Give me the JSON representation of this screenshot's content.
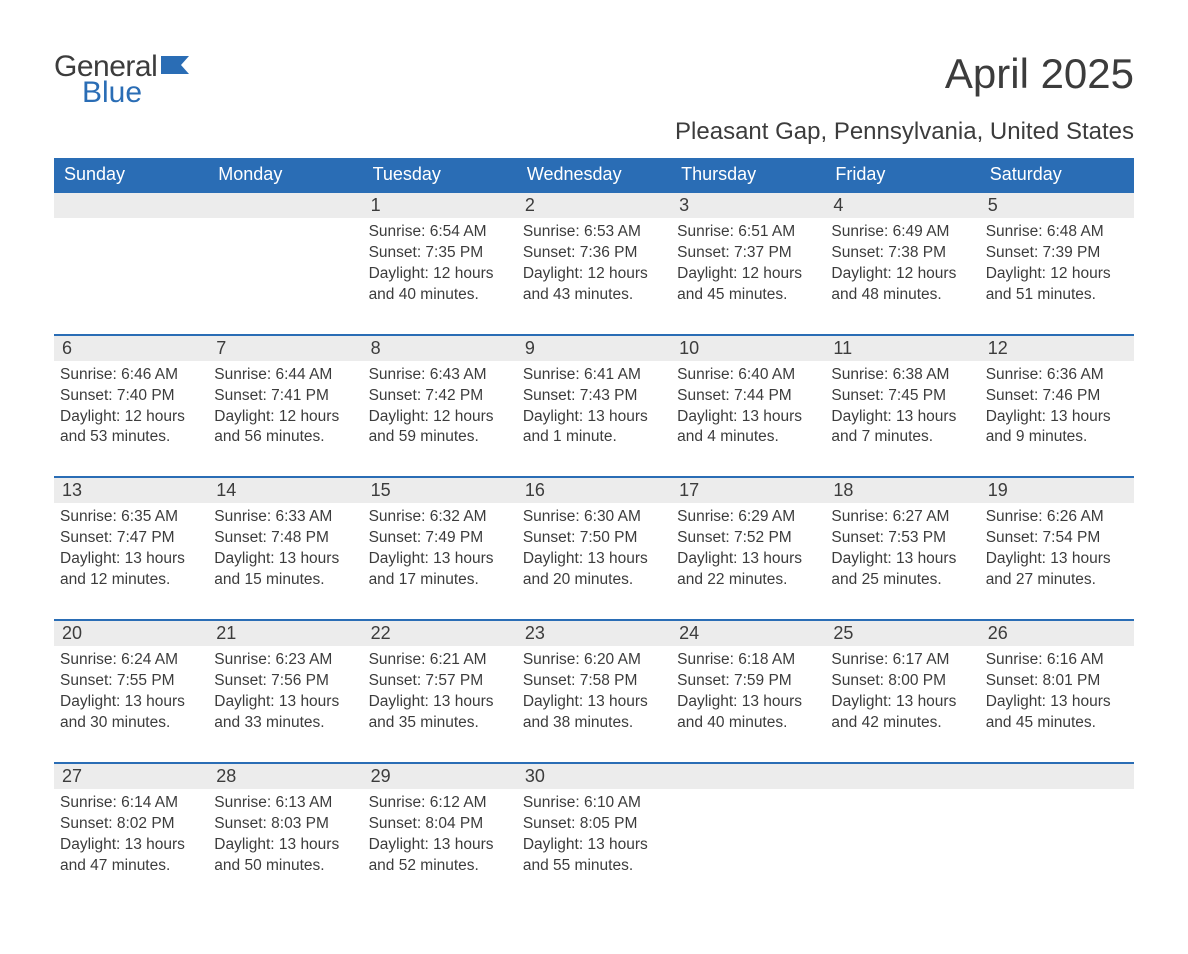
{
  "brand": {
    "word1": "General",
    "word2": "Blue",
    "color1": "#3c3c3c",
    "color2": "#2a6db5"
  },
  "title": "April 2025",
  "location": "Pleasant Gap, Pennsylvania, United States",
  "style": {
    "header_bg": "#2a6db5",
    "header_fg": "#ffffff",
    "daynum_bg": "#ececec",
    "text_color": "#3c3c3c",
    "rule_color": "#2a6db5",
    "page_bg": "#ffffff",
    "title_fontsize": 42,
    "location_fontsize": 24,
    "header_fontsize": 18,
    "daynum_fontsize": 18,
    "body_fontsize": 15.5
  },
  "columns": [
    "Sunday",
    "Monday",
    "Tuesday",
    "Wednesday",
    "Thursday",
    "Friday",
    "Saturday"
  ],
  "weeks": [
    [
      null,
      null,
      {
        "n": "1",
        "sr": "Sunrise: 6:54 AM",
        "ss": "Sunset: 7:35 PM",
        "dl": "Daylight: 12 hours and 40 minutes."
      },
      {
        "n": "2",
        "sr": "Sunrise: 6:53 AM",
        "ss": "Sunset: 7:36 PM",
        "dl": "Daylight: 12 hours and 43 minutes."
      },
      {
        "n": "3",
        "sr": "Sunrise: 6:51 AM",
        "ss": "Sunset: 7:37 PM",
        "dl": "Daylight: 12 hours and 45 minutes."
      },
      {
        "n": "4",
        "sr": "Sunrise: 6:49 AM",
        "ss": "Sunset: 7:38 PM",
        "dl": "Daylight: 12 hours and 48 minutes."
      },
      {
        "n": "5",
        "sr": "Sunrise: 6:48 AM",
        "ss": "Sunset: 7:39 PM",
        "dl": "Daylight: 12 hours and 51 minutes."
      }
    ],
    [
      {
        "n": "6",
        "sr": "Sunrise: 6:46 AM",
        "ss": "Sunset: 7:40 PM",
        "dl": "Daylight: 12 hours and 53 minutes."
      },
      {
        "n": "7",
        "sr": "Sunrise: 6:44 AM",
        "ss": "Sunset: 7:41 PM",
        "dl": "Daylight: 12 hours and 56 minutes."
      },
      {
        "n": "8",
        "sr": "Sunrise: 6:43 AM",
        "ss": "Sunset: 7:42 PM",
        "dl": "Daylight: 12 hours and 59 minutes."
      },
      {
        "n": "9",
        "sr": "Sunrise: 6:41 AM",
        "ss": "Sunset: 7:43 PM",
        "dl": "Daylight: 13 hours and 1 minute."
      },
      {
        "n": "10",
        "sr": "Sunrise: 6:40 AM",
        "ss": "Sunset: 7:44 PM",
        "dl": "Daylight: 13 hours and 4 minutes."
      },
      {
        "n": "11",
        "sr": "Sunrise: 6:38 AM",
        "ss": "Sunset: 7:45 PM",
        "dl": "Daylight: 13 hours and 7 minutes."
      },
      {
        "n": "12",
        "sr": "Sunrise: 6:36 AM",
        "ss": "Sunset: 7:46 PM",
        "dl": "Daylight: 13 hours and 9 minutes."
      }
    ],
    [
      {
        "n": "13",
        "sr": "Sunrise: 6:35 AM",
        "ss": "Sunset: 7:47 PM",
        "dl": "Daylight: 13 hours and 12 minutes."
      },
      {
        "n": "14",
        "sr": "Sunrise: 6:33 AM",
        "ss": "Sunset: 7:48 PM",
        "dl": "Daylight: 13 hours and 15 minutes."
      },
      {
        "n": "15",
        "sr": "Sunrise: 6:32 AM",
        "ss": "Sunset: 7:49 PM",
        "dl": "Daylight: 13 hours and 17 minutes."
      },
      {
        "n": "16",
        "sr": "Sunrise: 6:30 AM",
        "ss": "Sunset: 7:50 PM",
        "dl": "Daylight: 13 hours and 20 minutes."
      },
      {
        "n": "17",
        "sr": "Sunrise: 6:29 AM",
        "ss": "Sunset: 7:52 PM",
        "dl": "Daylight: 13 hours and 22 minutes."
      },
      {
        "n": "18",
        "sr": "Sunrise: 6:27 AM",
        "ss": "Sunset: 7:53 PM",
        "dl": "Daylight: 13 hours and 25 minutes."
      },
      {
        "n": "19",
        "sr": "Sunrise: 6:26 AM",
        "ss": "Sunset: 7:54 PM",
        "dl": "Daylight: 13 hours and 27 minutes."
      }
    ],
    [
      {
        "n": "20",
        "sr": "Sunrise: 6:24 AM",
        "ss": "Sunset: 7:55 PM",
        "dl": "Daylight: 13 hours and 30 minutes."
      },
      {
        "n": "21",
        "sr": "Sunrise: 6:23 AM",
        "ss": "Sunset: 7:56 PM",
        "dl": "Daylight: 13 hours and 33 minutes."
      },
      {
        "n": "22",
        "sr": "Sunrise: 6:21 AM",
        "ss": "Sunset: 7:57 PM",
        "dl": "Daylight: 13 hours and 35 minutes."
      },
      {
        "n": "23",
        "sr": "Sunrise: 6:20 AM",
        "ss": "Sunset: 7:58 PM",
        "dl": "Daylight: 13 hours and 38 minutes."
      },
      {
        "n": "24",
        "sr": "Sunrise: 6:18 AM",
        "ss": "Sunset: 7:59 PM",
        "dl": "Daylight: 13 hours and 40 minutes."
      },
      {
        "n": "25",
        "sr": "Sunrise: 6:17 AM",
        "ss": "Sunset: 8:00 PM",
        "dl": "Daylight: 13 hours and 42 minutes."
      },
      {
        "n": "26",
        "sr": "Sunrise: 6:16 AM",
        "ss": "Sunset: 8:01 PM",
        "dl": "Daylight: 13 hours and 45 minutes."
      }
    ],
    [
      {
        "n": "27",
        "sr": "Sunrise: 6:14 AM",
        "ss": "Sunset: 8:02 PM",
        "dl": "Daylight: 13 hours and 47 minutes."
      },
      {
        "n": "28",
        "sr": "Sunrise: 6:13 AM",
        "ss": "Sunset: 8:03 PM",
        "dl": "Daylight: 13 hours and 50 minutes."
      },
      {
        "n": "29",
        "sr": "Sunrise: 6:12 AM",
        "ss": "Sunset: 8:04 PM",
        "dl": "Daylight: 13 hours and 52 minutes."
      },
      {
        "n": "30",
        "sr": "Sunrise: 6:10 AM",
        "ss": "Sunset: 8:05 PM",
        "dl": "Daylight: 13 hours and 55 minutes."
      },
      null,
      null,
      null
    ]
  ]
}
